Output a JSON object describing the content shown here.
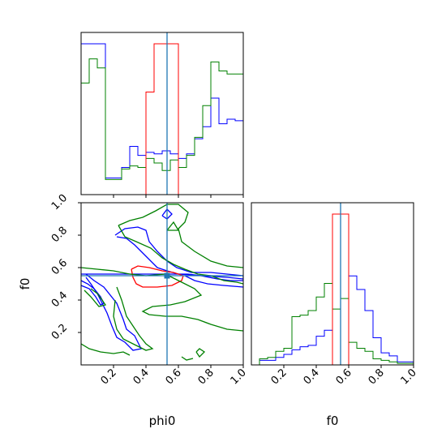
{
  "colors": {
    "blue": "#0000ff",
    "green": "#008000",
    "red": "#ff0000",
    "truth": "#1f77b4",
    "axis": "#000000"
  },
  "chart_data": {
    "type": "corner",
    "parameters": [
      "phi0",
      "f0"
    ],
    "truth": {
      "phi0": 0.53,
      "f0": 0.55
    },
    "axis_ticks": {
      "x": [
        "0.2",
        "0.4",
        "0.6",
        "0.8",
        "1.0"
      ],
      "y": [
        "0.2",
        "0.4",
        "0.6",
        "0.8",
        "1.0"
      ]
    },
    "labels": {
      "x_phi0": "phi0",
      "x_f0": "f0",
      "y_f0": "f0"
    },
    "hist_phi0": {
      "bins": [
        0.0,
        0.05,
        0.1,
        0.15,
        0.2,
        0.25,
        0.3,
        0.35,
        0.4,
        0.45,
        0.5,
        0.55,
        0.6,
        0.65,
        0.7,
        0.75,
        0.8,
        0.85,
        0.9,
        0.95,
        1.0
      ],
      "series": [
        {
          "color": "blue",
          "heights": [
            1.0,
            1.0,
            1.0,
            0.11,
            0.11,
            0.18,
            0.32,
            0.26,
            0.28,
            0.27,
            0.29,
            0.27,
            0.24,
            0.27,
            0.37,
            0.45,
            0.64,
            0.47,
            0.5,
            0.49
          ]
        },
        {
          "color": "green",
          "heights": [
            0.74,
            0.9,
            0.84,
            0.1,
            0.1,
            0.17,
            0.19,
            0.18,
            0.24,
            0.21,
            0.16,
            0.23,
            0.18,
            0.26,
            0.38,
            0.59,
            0.88,
            0.82,
            0.8,
            0.8
          ]
        },
        {
          "color": "red",
          "heights": [
            0.0,
            0.0,
            0.0,
            0.0,
            0.0,
            0.0,
            0.0,
            0.0,
            0.68,
            1.0,
            1.0,
            1.0,
            0.0,
            0.0,
            0.0,
            0.0,
            0.0,
            0.0,
            0.0,
            0.0
          ]
        }
      ]
    },
    "hist_f0": {
      "bins": [
        0.0,
        0.05,
        0.1,
        0.15,
        0.2,
        0.25,
        0.3,
        0.35,
        0.4,
        0.45,
        0.5,
        0.55,
        0.6,
        0.65,
        0.7,
        0.75,
        0.8,
        0.85,
        0.9,
        0.95,
        1.0
      ],
      "series": [
        {
          "color": "blue",
          "heights": [
            0.0,
            0.03,
            0.03,
            0.05,
            0.07,
            0.1,
            0.12,
            0.13,
            0.19,
            0.23,
            1.0,
            1.0,
            0.59,
            0.5,
            0.36,
            0.18,
            0.08,
            0.06,
            0.02,
            0.02
          ]
        },
        {
          "color": "green",
          "heights": [
            0.0,
            0.04,
            0.05,
            0.09,
            0.11,
            0.32,
            0.33,
            0.36,
            0.45,
            0.54,
            0.37,
            0.44,
            0.15,
            0.11,
            0.09,
            0.04,
            0.03,
            0.02,
            0.01,
            0.01
          ]
        },
        {
          "color": "red",
          "heights": [
            0.0,
            0.0,
            0.0,
            0.0,
            0.0,
            0.0,
            0.0,
            0.0,
            0.0,
            0.0,
            1.0,
            1.0,
            0.0,
            0.0,
            0.0,
            0.0,
            0.0,
            0.0,
            0.0,
            0.0
          ]
        }
      ]
    },
    "contours_2d": [
      {
        "color": "blue",
        "points": [
          [
            0.03,
            0.56
          ],
          [
            0.08,
            0.52
          ],
          [
            0.14,
            0.48
          ],
          [
            0.22,
            0.38
          ],
          [
            0.26,
            0.28
          ],
          [
            0.28,
            0.22
          ],
          [
            0.33,
            0.18
          ],
          [
            0.37,
            0.1
          ],
          [
            0.32,
            0.09
          ],
          [
            0.27,
            0.14
          ],
          [
            0.22,
            0.17
          ],
          [
            0.19,
            0.24
          ],
          [
            0.16,
            0.32
          ],
          [
            0.13,
            0.38
          ],
          [
            0.1,
            0.44
          ],
          [
            0.06,
            0.5
          ],
          [
            0.03,
            0.54
          ]
        ]
      },
      {
        "color": "blue",
        "points": [
          [
            0.0,
            0.52
          ],
          [
            0.04,
            0.5
          ],
          [
            0.08,
            0.47
          ],
          [
            0.12,
            0.42
          ],
          [
            0.14,
            0.38
          ],
          [
            0.12,
            0.37
          ],
          [
            0.09,
            0.42
          ],
          [
            0.05,
            0.47
          ],
          [
            0.0,
            0.49
          ]
        ]
      },
      {
        "color": "blue",
        "points": [
          [
            0.21,
            0.8
          ],
          [
            0.27,
            0.84
          ],
          [
            0.35,
            0.85
          ],
          [
            0.4,
            0.83
          ],
          [
            0.42,
            0.76
          ],
          [
            0.47,
            0.7
          ],
          [
            0.53,
            0.64
          ],
          [
            0.59,
            0.6
          ],
          [
            0.68,
            0.57
          ],
          [
            0.8,
            0.57
          ],
          [
            0.9,
            0.56
          ],
          [
            1.0,
            0.55
          ],
          [
            1.0,
            0.52
          ],
          [
            0.92,
            0.52
          ],
          [
            0.84,
            0.53
          ],
          [
            0.74,
            0.55
          ],
          [
            0.66,
            0.56
          ],
          [
            0.6,
            0.56
          ],
          [
            0.53,
            0.58
          ],
          [
            0.47,
            0.6
          ],
          [
            0.41,
            0.66
          ],
          [
            0.36,
            0.71
          ],
          [
            0.33,
            0.74
          ],
          [
            0.28,
            0.78
          ],
          [
            0.22,
            0.79
          ]
        ]
      },
      {
        "color": "blue",
        "points": [
          [
            0.0,
            0.56
          ],
          [
            0.15,
            0.56
          ],
          [
            0.3,
            0.56
          ],
          [
            0.45,
            0.56
          ],
          [
            0.6,
            0.56
          ],
          [
            0.75,
            0.55
          ],
          [
            0.9,
            0.54
          ],
          [
            1.0,
            0.53
          ]
        ]
      },
      {
        "color": "blue",
        "points": [
          [
            0.64,
            0.55
          ],
          [
            0.7,
            0.52
          ],
          [
            0.78,
            0.5
          ],
          [
            0.88,
            0.49
          ],
          [
            1.0,
            0.48
          ]
        ]
      },
      {
        "color": "blue",
        "points": [
          [
            0.5,
            0.92
          ],
          [
            0.53,
            0.96
          ],
          [
            0.56,
            0.93
          ],
          [
            0.53,
            0.9
          ],
          [
            0.5,
            0.92
          ]
        ]
      },
      {
        "color": "red",
        "points": [
          [
            0.31,
            0.59
          ],
          [
            0.35,
            0.61
          ],
          [
            0.42,
            0.6
          ],
          [
            0.5,
            0.58
          ],
          [
            0.57,
            0.57
          ],
          [
            0.63,
            0.55
          ],
          [
            0.62,
            0.52
          ],
          [
            0.56,
            0.49
          ],
          [
            0.47,
            0.48
          ],
          [
            0.38,
            0.48
          ],
          [
            0.34,
            0.5
          ],
          [
            0.32,
            0.54
          ],
          [
            0.31,
            0.59
          ]
        ]
      },
      {
        "color": "green",
        "points": [
          [
            0.23,
            0.86
          ],
          [
            0.3,
            0.89
          ],
          [
            0.38,
            0.91
          ],
          [
            0.46,
            0.95
          ],
          [
            0.53,
            0.99
          ],
          [
            0.6,
            0.99
          ],
          [
            0.66,
            0.94
          ],
          [
            0.64,
            0.88
          ],
          [
            0.6,
            0.84
          ],
          [
            0.62,
            0.76
          ],
          [
            0.7,
            0.7
          ],
          [
            0.8,
            0.64
          ],
          [
            0.9,
            0.61
          ],
          [
            1.0,
            0.6
          ]
        ]
      },
      {
        "color": "green",
        "points": [
          [
            0.23,
            0.86
          ],
          [
            0.27,
            0.79
          ],
          [
            0.34,
            0.76
          ],
          [
            0.43,
            0.72
          ],
          [
            0.5,
            0.66
          ],
          [
            0.57,
            0.62
          ],
          [
            0.64,
            0.59
          ],
          [
            0.72,
            0.56
          ],
          [
            0.8,
            0.55
          ],
          [
            0.88,
            0.52
          ],
          [
            0.96,
            0.51
          ],
          [
            1.0,
            0.5
          ]
        ]
      },
      {
        "color": "green",
        "points": [
          [
            0.0,
            0.6
          ],
          [
            0.1,
            0.59
          ],
          [
            0.2,
            0.58
          ],
          [
            0.3,
            0.56
          ],
          [
            0.4,
            0.55
          ],
          [
            0.52,
            0.56
          ]
        ]
      },
      {
        "color": "green",
        "points": [
          [
            0.52,
            0.56
          ],
          [
            0.62,
            0.51
          ],
          [
            0.7,
            0.47
          ],
          [
            0.74,
            0.43
          ],
          [
            0.64,
            0.39
          ],
          [
            0.55,
            0.37
          ],
          [
            0.44,
            0.36
          ],
          [
            0.38,
            0.33
          ],
          [
            0.42,
            0.31
          ],
          [
            0.52,
            0.3
          ],
          [
            0.62,
            0.3
          ],
          [
            0.72,
            0.28
          ],
          [
            0.8,
            0.25
          ],
          [
            0.9,
            0.22
          ],
          [
            1.0,
            0.21
          ]
        ]
      },
      {
        "color": "green",
        "points": [
          [
            0.53,
            0.83
          ],
          [
            0.57,
            0.88
          ],
          [
            0.6,
            0.83
          ],
          [
            0.53,
            0.83
          ]
        ]
      },
      {
        "color": "green",
        "points": [
          [
            0.0,
            0.13
          ],
          [
            0.05,
            0.1
          ],
          [
            0.12,
            0.08
          ],
          [
            0.2,
            0.07
          ],
          [
            0.26,
            0.08
          ],
          [
            0.3,
            0.06
          ]
        ]
      },
      {
        "color": "green",
        "points": [
          [
            0.22,
            0.48
          ],
          [
            0.25,
            0.4
          ],
          [
            0.28,
            0.3
          ],
          [
            0.32,
            0.24
          ],
          [
            0.36,
            0.18
          ],
          [
            0.4,
            0.13
          ],
          [
            0.44,
            0.1
          ],
          [
            0.4,
            0.09
          ],
          [
            0.34,
            0.12
          ],
          [
            0.26,
            0.16
          ],
          [
            0.22,
            0.22
          ],
          [
            0.2,
            0.3
          ],
          [
            0.21,
            0.4
          ]
        ]
      },
      {
        "color": "green",
        "points": [
          [
            0.06,
            0.47
          ],
          [
            0.1,
            0.44
          ],
          [
            0.13,
            0.4
          ],
          [
            0.15,
            0.37
          ],
          [
            0.11,
            0.36
          ],
          [
            0.06,
            0.42
          ],
          [
            0.02,
            0.46
          ]
        ]
      },
      {
        "color": "green",
        "points": [
          [
            0.71,
            0.08
          ],
          [
            0.73,
            0.1
          ],
          [
            0.76,
            0.08
          ],
          [
            0.73,
            0.05
          ],
          [
            0.71,
            0.08
          ]
        ]
      },
      {
        "color": "green",
        "points": [
          [
            0.62,
            0.05
          ],
          [
            0.65,
            0.03
          ],
          [
            0.69,
            0.04
          ]
        ]
      }
    ]
  }
}
